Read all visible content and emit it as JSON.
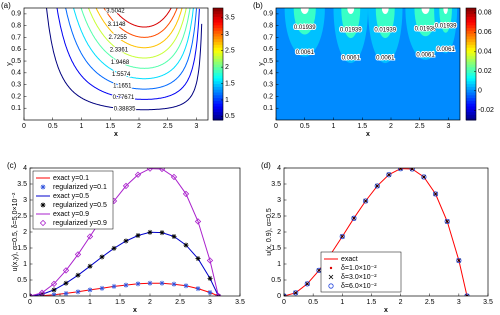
{
  "chart_data": [
    {
      "type": "contour",
      "panel_label": "(a)",
      "x_label": "x",
      "y_label": "y",
      "xlim": [
        0,
        3.2
      ],
      "xticks": [
        0,
        0.5,
        1,
        1.5,
        2,
        2.5,
        3
      ],
      "ylim": [
        0,
        0.95
      ],
      "yticks": [
        0.1,
        0.2,
        0.3,
        0.4,
        0.5,
        0.6,
        0.7,
        0.8,
        0.9
      ],
      "levels": [
        0.38835,
        0.77671,
        1.1651,
        1.5574,
        1.9468,
        2.3361,
        2.7255,
        3.1148,
        3.5042
      ],
      "clim": [
        0.39,
        3.8
      ],
      "cticks": [
        0.5,
        1,
        1.5,
        2,
        2.5,
        3,
        3.5
      ]
    },
    {
      "type": "filled_contour",
      "panel_label": "(b)",
      "x_label": "x",
      "y_label": "y",
      "xlim": [
        0,
        3.2
      ],
      "xticks": [
        0,
        0.5,
        1,
        1.5,
        2,
        2.5,
        3
      ],
      "ylim": [
        0,
        0.95
      ],
      "yticks": [
        0.1,
        0.2,
        0.3,
        0.4,
        0.5,
        0.6,
        0.7,
        0.8,
        0.9
      ],
      "levels": [
        0.0061,
        0.01939
      ],
      "clim": [
        -0.03,
        0.085
      ],
      "cticks": [
        -0.02,
        0,
        0.02,
        0.04,
        0.06,
        0.08
      ]
    },
    {
      "type": "line",
      "panel_label": "(c)",
      "x_label": "x",
      "y_label": "u(x,y), α=0.5, δ=5.0×10⁻²",
      "legend": "upper left",
      "xlim": [
        0,
        3.5
      ],
      "xticks": [
        0,
        0.5,
        1,
        1.5,
        2,
        2.5,
        3,
        3.5
      ],
      "ylim": [
        0,
        4
      ],
      "yticks": [
        0,
        0.5,
        1,
        1.5,
        2,
        2.5,
        3,
        3.5,
        4
      ],
      "x": [
        0,
        0.2,
        0.4,
        0.6,
        0.8,
        1.0,
        1.2,
        1.4,
        1.6,
        1.8,
        2.0,
        2.2,
        2.4,
        2.6,
        2.8,
        3.0,
        3.14
      ],
      "series": [
        {
          "name": "exact y=0.1",
          "color": "#ff0000",
          "marker": "line",
          "values": [
            0,
            0.01,
            0.04,
            0.08,
            0.13,
            0.19,
            0.24,
            0.3,
            0.34,
            0.38,
            0.4,
            0.4,
            0.37,
            0.32,
            0.23,
            0.11,
            0
          ]
        },
        {
          "name": "regularized y=0.1",
          "color": "#3355dd",
          "marker": "star",
          "values": [
            0,
            0.01,
            0.04,
            0.08,
            0.13,
            0.19,
            0.24,
            0.3,
            0.34,
            0.38,
            0.4,
            0.4,
            0.37,
            0.32,
            0.23,
            0.11,
            0
          ]
        },
        {
          "name": "exact y=0.5",
          "color": "#0000cc",
          "marker": "line",
          "values": [
            0,
            0.05,
            0.19,
            0.4,
            0.65,
            0.93,
            1.22,
            1.49,
            1.72,
            1.89,
            1.99,
            1.98,
            1.86,
            1.59,
            1.17,
            0.55,
            0
          ]
        },
        {
          "name": "regularized y=0.5",
          "color": "#000000",
          "marker": "star",
          "values": [
            0,
            0.05,
            0.19,
            0.4,
            0.65,
            0.93,
            1.22,
            1.49,
            1.72,
            1.89,
            1.99,
            1.98,
            1.86,
            1.59,
            1.17,
            0.55,
            0
          ]
        },
        {
          "name": "exact y=0.9",
          "color": "#aa22cc",
          "marker": "line",
          "values": [
            0,
            0.1,
            0.38,
            0.8,
            1.3,
            1.86,
            2.43,
            2.97,
            3.44,
            3.79,
            3.98,
            3.97,
            3.72,
            3.19,
            2.33,
            1.11,
            0
          ]
        },
        {
          "name": "regularized y=0.9",
          "color": "#aa22cc",
          "marker": "diamond",
          "values": [
            0,
            0.1,
            0.38,
            0.8,
            1.3,
            1.86,
            2.43,
            2.97,
            3.44,
            3.79,
            3.98,
            3.97,
            3.72,
            3.19,
            2.33,
            1.11,
            0
          ]
        }
      ]
    },
    {
      "type": "line",
      "panel_label": "(d)",
      "x_label": "x",
      "y_label": "u(x, 0.9), α=0.5",
      "legend": "lower center",
      "xlim": [
        0,
        3.5
      ],
      "xticks": [
        0,
        0.5,
        1,
        1.5,
        2,
        2.5,
        3,
        3.5
      ],
      "ylim": [
        0,
        4
      ],
      "yticks": [
        0,
        0.5,
        1,
        1.5,
        2,
        2.5,
        3,
        3.5,
        4
      ],
      "x": [
        0,
        0.2,
        0.4,
        0.6,
        0.8,
        1.0,
        1.2,
        1.4,
        1.6,
        1.8,
        2.0,
        2.2,
        2.4,
        2.6,
        2.8,
        3.0,
        3.14
      ],
      "series": [
        {
          "name": "exact",
          "color": "#ff0000",
          "marker": "line",
          "values": [
            0,
            0.1,
            0.38,
            0.8,
            1.3,
            1.86,
            2.43,
            2.97,
            3.44,
            3.79,
            3.98,
            3.97,
            3.72,
            3.19,
            2.33,
            1.11,
            0
          ]
        },
        {
          "name": "δ=1.0×10⁻²",
          "color": "#dd0000",
          "marker": "dot",
          "values": [
            0,
            0.1,
            0.38,
            0.8,
            1.3,
            1.86,
            2.43,
            2.97,
            3.44,
            3.79,
            3.98,
            3.97,
            3.72,
            3.19,
            2.33,
            1.11,
            0
          ]
        },
        {
          "name": "δ=3.0×10⁻²",
          "color": "#000000",
          "marker": "x",
          "values": [
            0,
            0.1,
            0.38,
            0.8,
            1.3,
            1.86,
            2.43,
            2.97,
            3.44,
            3.79,
            3.98,
            3.97,
            3.72,
            3.19,
            2.33,
            1.11,
            0
          ]
        },
        {
          "name": "δ=6.0×10⁻²",
          "color": "#2244dd",
          "marker": "circle",
          "values": [
            0,
            0.1,
            0.38,
            0.8,
            1.3,
            1.86,
            2.43,
            2.97,
            3.44,
            3.79,
            3.98,
            3.97,
            3.72,
            3.19,
            2.33,
            1.11,
            0
          ]
        }
      ]
    }
  ]
}
